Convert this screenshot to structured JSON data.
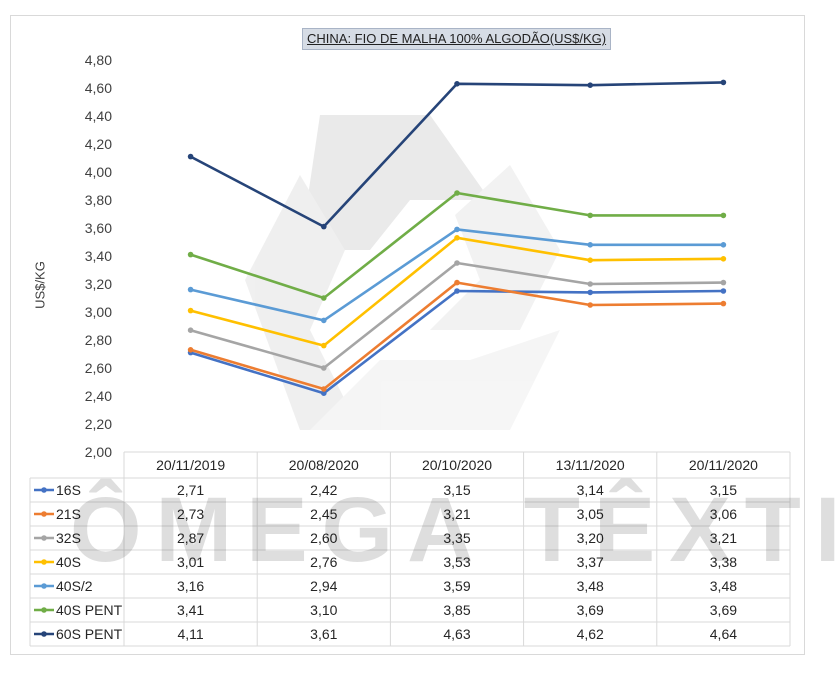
{
  "chart_data": {
    "type": "line",
    "title": "CHINA:  FIO DE MALHA 100% ALGODÃO(US$/KG)",
    "ylabel": "US$/KG",
    "xlabel": "",
    "ylim": [
      2.0,
      4.8
    ],
    "ytick_step": 0.2,
    "ytick_labels": [
      "2,00",
      "2,20",
      "2,40",
      "2,60",
      "2,80",
      "3,00",
      "3,20",
      "3,40",
      "3,60",
      "3,80",
      "4,00",
      "4,20",
      "4,40",
      "4,60",
      "4,80"
    ],
    "grid": false,
    "legend": "data-table",
    "categories": [
      "20/11/2019",
      "20/08/2020",
      "20/10/2020",
      "13/11/2020",
      "20/11/2020"
    ],
    "series": [
      {
        "name": "16S",
        "color": "#4472c4",
        "values": [
          2.71,
          2.42,
          3.15,
          3.14,
          3.15
        ],
        "labels": [
          "2,71",
          "2,42",
          "3,15",
          "3,14",
          "3,15"
        ]
      },
      {
        "name": "21S",
        "color": "#ed7d31",
        "values": [
          2.73,
          2.45,
          3.21,
          3.05,
          3.06
        ],
        "labels": [
          "2,73",
          "2,45",
          "3,21",
          "3,05",
          "3,06"
        ]
      },
      {
        "name": "32S",
        "color": "#a5a5a5",
        "values": [
          2.87,
          2.6,
          3.35,
          3.2,
          3.21
        ],
        "labels": [
          "2,87",
          "2,60",
          "3,35",
          "3,20",
          "3,21"
        ]
      },
      {
        "name": "40S",
        "color": "#ffc000",
        "values": [
          3.01,
          2.76,
          3.53,
          3.37,
          3.38
        ],
        "labels": [
          "3,01",
          "2,76",
          "3,53",
          "3,37",
          "3,38"
        ]
      },
      {
        "name": "40S/2",
        "color": "#5b9bd5",
        "values": [
          3.16,
          2.94,
          3.59,
          3.48,
          3.48
        ],
        "labels": [
          "3,16",
          "2,94",
          "3,59",
          "3,48",
          "3,48"
        ]
      },
      {
        "name": "40S PENT",
        "color": "#70ad47",
        "values": [
          3.41,
          3.1,
          3.85,
          3.69,
          3.69
        ],
        "labels": [
          "3,41",
          "3,10",
          "3,85",
          "3,69",
          "3,69"
        ]
      },
      {
        "name": "60S PENT",
        "color": "#264478",
        "values": [
          4.11,
          3.61,
          4.63,
          4.62,
          4.64
        ],
        "labels": [
          "4,11",
          "3,61",
          "4,63",
          "4,62",
          "4,64"
        ]
      }
    ]
  },
  "watermark": {
    "text": "ÔMEGA TÊXTIL"
  }
}
